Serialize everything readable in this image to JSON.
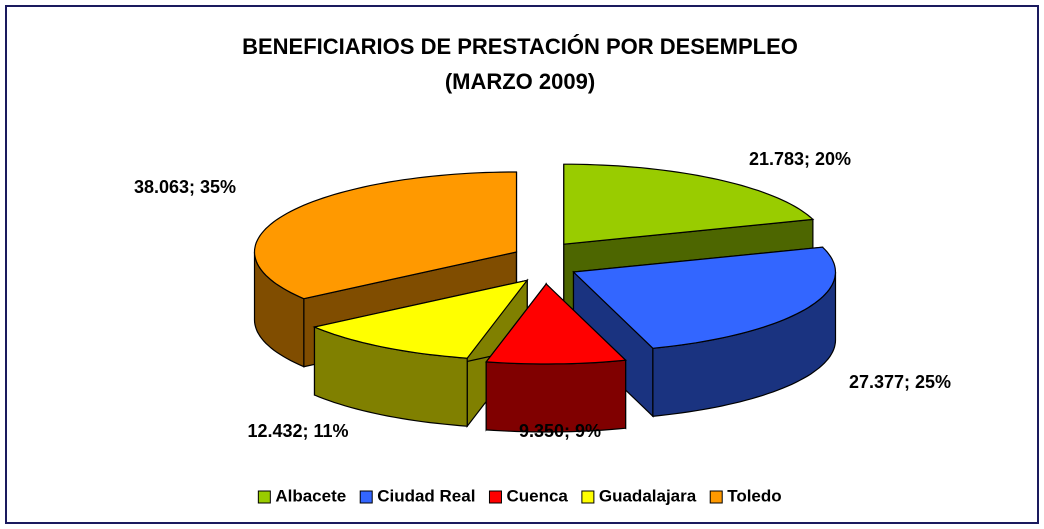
{
  "chart_data": {
    "type": "pie",
    "title": "BENEFICIARIOS DE PRESTACIÓN POR DESEMPLEO",
    "subtitle": "(MARZO 2009)",
    "categories": [
      "Albacete",
      "Ciudad Real",
      "Cuenca",
      "Guadalajara",
      "Toledo"
    ],
    "values": [
      21783,
      27377,
      9350,
      12432,
      38063
    ],
    "value_labels": [
      "21.783; 20%",
      "27.377; 25%",
      "9.350; 9%",
      "12.432; 11%",
      "38.063; 35%"
    ],
    "colors": [
      "#99cc00",
      "#3366ff",
      "#ff0000",
      "#ffff00",
      "#ff9900"
    ],
    "legend": "bottom"
  }
}
